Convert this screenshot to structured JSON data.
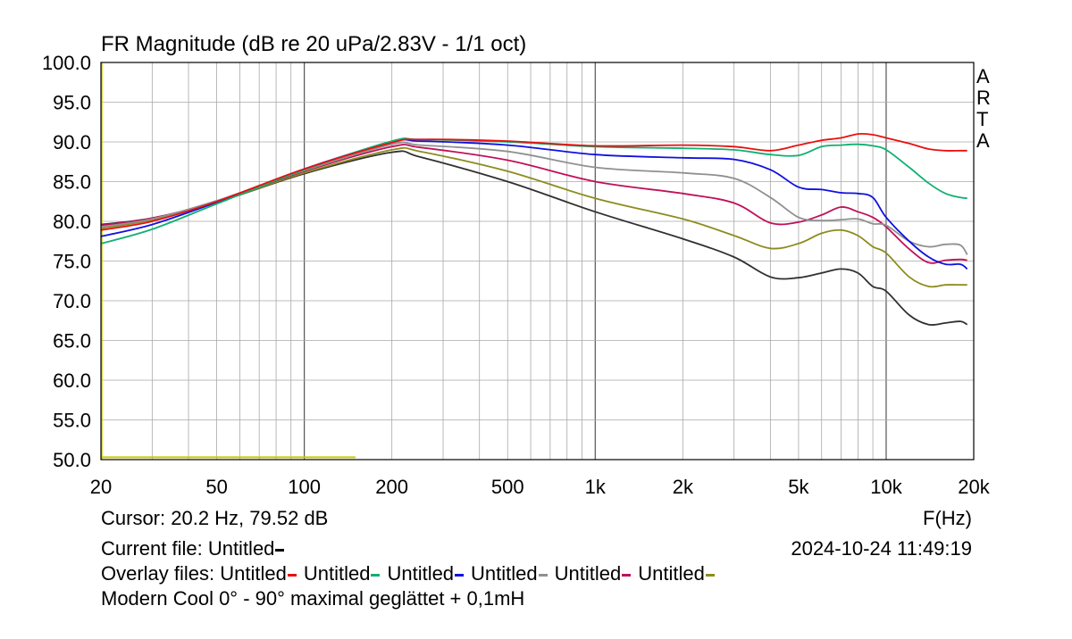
{
  "chart_data": {
    "type": "line",
    "title": "FR Magnitude (dB re 20 uPa/2.83V - 1/1 oct)",
    "xlabel": "F(Hz)",
    "ylabel": "",
    "x_scale": "log",
    "xlim": [
      20,
      20000
    ],
    "ylim": [
      50,
      100
    ],
    "grid": true,
    "y_ticks": [
      "100.0",
      "95.0",
      "90.0",
      "85.0",
      "80.0",
      "75.0",
      "70.0",
      "65.0",
      "60.0",
      "55.0",
      "50.0"
    ],
    "x_ticks": [
      {
        "value": 20,
        "label": "20"
      },
      {
        "value": 50,
        "label": "50"
      },
      {
        "value": 100,
        "label": "100"
      },
      {
        "value": 200,
        "label": "200"
      },
      {
        "value": 500,
        "label": "500"
      },
      {
        "value": 1000,
        "label": "1k"
      },
      {
        "value": 2000,
        "label": "2k"
      },
      {
        "value": 5000,
        "label": "5k"
      },
      {
        "value": 10000,
        "label": "10k"
      },
      {
        "value": 20000,
        "label": "20k"
      }
    ],
    "brand_letters": [
      "A",
      "R",
      "T",
      "A"
    ],
    "x": [
      20,
      30,
      50,
      100,
      200,
      250,
      500,
      1000,
      2000,
      3000,
      4000,
      5000,
      6000,
      7000,
      8000,
      9000,
      10000,
      12000,
      14000,
      16000,
      18000,
      19000
    ],
    "series": [
      {
        "color": "#e81010",
        "values": [
          78.9,
          80.0,
          82.5,
          86.6,
          89.9,
          90.3,
          90.1,
          89.5,
          89.6,
          89.4,
          88.9,
          89.6,
          90.2,
          90.5,
          91.0,
          90.9,
          90.5,
          89.8,
          89.1,
          88.9,
          88.9,
          88.9
        ]
      },
      {
        "color": "#10b070",
        "values": [
          77.2,
          79.0,
          82.2,
          86.5,
          90.1,
          90.3,
          90.0,
          89.4,
          89.2,
          89.0,
          88.4,
          88.3,
          89.4,
          89.6,
          89.7,
          89.5,
          89.0,
          86.8,
          84.8,
          83.5,
          83.0,
          82.9
        ]
      },
      {
        "color": "#1010e0",
        "values": [
          78.1,
          79.6,
          82.4,
          86.6,
          90.0,
          90.1,
          89.6,
          88.4,
          88.0,
          87.8,
          86.5,
          84.3,
          84.0,
          83.6,
          83.5,
          83.0,
          80.5,
          77.5,
          75.5,
          74.6,
          74.6,
          74.0
        ]
      },
      {
        "color": "#909090",
        "values": [
          79.3,
          80.3,
          82.6,
          86.4,
          89.7,
          89.6,
          88.8,
          86.8,
          86.1,
          85.4,
          83.0,
          80.5,
          80.1,
          80.2,
          80.3,
          79.7,
          79.5,
          77.5,
          76.8,
          77.1,
          77.0,
          75.8
        ]
      },
      {
        "color": "#c0105a",
        "values": [
          79.5,
          80.4,
          82.5,
          86.3,
          89.4,
          89.3,
          87.7,
          85.0,
          83.5,
          82.3,
          79.8,
          79.9,
          80.8,
          81.8,
          81.2,
          80.5,
          79.3,
          76.5,
          74.8,
          75.1,
          75.2,
          75.1
        ]
      },
      {
        "color": "#8c8c1e",
        "values": [
          79.1,
          80.2,
          82.4,
          86.1,
          89.0,
          88.8,
          86.3,
          82.9,
          80.3,
          78.2,
          76.6,
          77.2,
          78.5,
          78.9,
          78.2,
          76.8,
          76.0,
          73.0,
          71.8,
          72.0,
          72.0,
          72.0
        ]
      },
      {
        "color": "#303030",
        "values": [
          79.6,
          80.4,
          82.4,
          86.0,
          88.7,
          88.1,
          85.0,
          81.2,
          77.8,
          75.5,
          73.0,
          72.9,
          73.5,
          74.0,
          73.5,
          71.8,
          71.2,
          68.2,
          67.0,
          67.2,
          67.4,
          67.0
        ]
      }
    ],
    "baseline_trace": {
      "color": "#c8c800",
      "x": [
        20,
        150
      ],
      "y": 50.3
    }
  },
  "cursor_line": "Cursor: 20.2 Hz, 79.52 dB",
  "xlabel_text": "F(Hz)",
  "current_file": "Current file: Untitled",
  "timestamp": "2024-10-24   11:49:19",
  "overlay_label": "Overlay files: ",
  "overlay_name": "Untitled",
  "description": "Modern Cool 0° - 90° maximal geglättet + 0,1mH"
}
